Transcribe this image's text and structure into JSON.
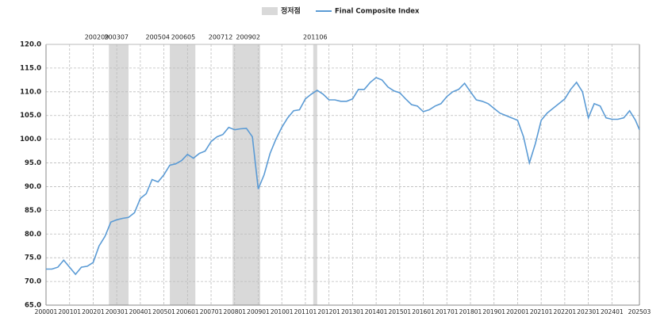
{
  "chart_data": {
    "type": "line",
    "shade": {
      "name": "정저점",
      "color": "#d9d9d9",
      "periods": [
        {
          "start": "200209",
          "end": "200307"
        },
        {
          "start": "200504",
          "end": "200605"
        },
        {
          "start": "200712",
          "end": "200902"
        },
        {
          "start": "201106",
          "end": "201106"
        }
      ]
    },
    "x": [
      "200001",
      "200004",
      "200007",
      "200010",
      "200101",
      "200104",
      "200107",
      "200110",
      "200201",
      "200204",
      "200207",
      "200210",
      "200301",
      "200304",
      "200307",
      "200310",
      "200401",
      "200404",
      "200407",
      "200410",
      "200501",
      "200504",
      "200507",
      "200510",
      "200601",
      "200604",
      "200607",
      "200610",
      "200701",
      "200704",
      "200707",
      "200710",
      "200801",
      "200804",
      "200807",
      "200810",
      "200901",
      "200904",
      "200907",
      "200910",
      "201001",
      "201004",
      "201007",
      "201010",
      "201101",
      "201104",
      "201107",
      "201110",
      "201201",
      "201204",
      "201207",
      "201210",
      "201301",
      "201304",
      "201307",
      "201310",
      "201401",
      "201404",
      "201407",
      "201410",
      "201501",
      "201504",
      "201507",
      "201510",
      "201601",
      "201604",
      "201607",
      "201610",
      "201701",
      "201704",
      "201707",
      "201710",
      "201801",
      "201804",
      "201807",
      "201810",
      "201901",
      "201904",
      "201907",
      "201910",
      "202001",
      "202004",
      "202007",
      "202010",
      "202101",
      "202104",
      "202107",
      "202110",
      "202201",
      "202204",
      "202207",
      "202210",
      "202301",
      "202304",
      "202307",
      "202310",
      "202401",
      "202404",
      "202407",
      "202410",
      "202501",
      "202503"
    ],
    "series": [
      {
        "name": "Final Composite Index",
        "color": "#5b9bd5",
        "values": [
          72.6,
          72.6,
          73.0,
          74.5,
          73.0,
          71.5,
          73.0,
          73.2,
          74.0,
          77.5,
          79.5,
          82.5,
          83.0,
          83.3,
          83.5,
          84.5,
          87.5,
          88.5,
          91.5,
          91.0,
          92.5,
          94.5,
          94.8,
          95.5,
          96.8,
          96.0,
          97.0,
          97.5,
          99.5,
          100.5,
          101.0,
          102.5,
          102.0,
          102.2,
          102.3,
          100.5,
          89.5,
          92.5,
          97.0,
          100.0,
          102.5,
          104.5,
          106.0,
          106.2,
          108.5,
          109.5,
          110.3,
          109.5,
          108.3,
          108.3,
          108.0,
          108.0,
          108.5,
          110.5,
          110.5,
          112.0,
          113.0,
          112.5,
          111.0,
          110.2,
          109.8,
          108.5,
          107.3,
          107.0,
          105.8,
          106.2,
          107.0,
          107.5,
          109.0,
          110.0,
          110.5,
          111.8,
          110.0,
          108.3,
          108.0,
          107.5,
          106.5,
          105.5,
          105.0,
          104.5,
          104.0,
          100.5,
          95.0,
          99.0,
          104.0,
          105.5,
          106.5,
          107.5,
          108.5,
          110.5,
          112.0,
          110.0,
          104.5,
          107.5,
          107.0,
          104.5,
          104.2,
          104.2,
          104.5,
          106.0,
          104.0,
          102.0
        ]
      }
    ],
    "xlim": [
      "200001",
      "202503"
    ],
    "xticks": [
      "200001",
      "200101",
      "200201",
      "200301",
      "200401",
      "200501",
      "200601",
      "200701",
      "200801",
      "200901",
      "201001",
      "201101",
      "201201",
      "201301",
      "201401",
      "201501",
      "201601",
      "201701",
      "201801",
      "201901",
      "202001",
      "202101",
      "202201",
      "202301",
      "202401",
      "202503"
    ],
    "ylim": [
      65,
      120
    ],
    "yticks": [
      {
        "value": 65,
        "label": "65.0"
      },
      {
        "value": 70,
        "label": "70.0"
      },
      {
        "value": 75,
        "label": "75.0"
      },
      {
        "value": 80,
        "label": "80.0"
      },
      {
        "value": 85,
        "label": "85.0"
      },
      {
        "value": 90,
        "label": "90.0"
      },
      {
        "value": 95,
        "label": "95.0"
      },
      {
        "value": 100,
        "label": "100.0"
      },
      {
        "value": 105,
        "label": "105.0"
      },
      {
        "value": 110,
        "label": "110.0"
      },
      {
        "value": 115,
        "label": "115.0"
      },
      {
        "value": 120,
        "label": "120.0"
      }
    ],
    "grid": true
  }
}
